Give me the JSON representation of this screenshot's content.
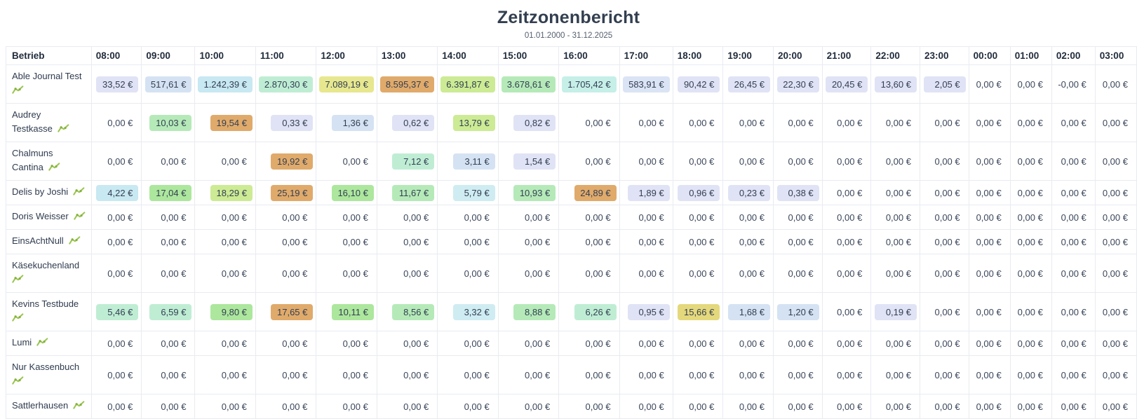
{
  "title": "Zeitzonenbericht",
  "subtitle": "01.01.2000 - 31.12.2025",
  "palette": {
    "lav": "#e0e3f5",
    "pblue": "#dbe4f5",
    "blue": "#d5e2f3",
    "cyan": "#c8e8f2",
    "pcyan": "#cfecf2",
    "turq": "#c6efe8",
    "mint": "#bfedd4",
    "mgreen": "#b5eab8",
    "green": "#ace79d",
    "ygreen": "#cceb94",
    "yellow": "#e7e78f",
    "gold": "#e4d87c",
    "orange": "#e0aa6b"
  },
  "table": {
    "first_col_header": "Betrieb",
    "hour_headers": [
      "08:00",
      "09:00",
      "10:00",
      "11:00",
      "12:00",
      "13:00",
      "14:00",
      "15:00",
      "16:00",
      "17:00",
      "18:00",
      "19:00",
      "20:00",
      "21:00",
      "22:00",
      "23:00",
      "00:00",
      "01:00",
      "02:00",
      "03:00"
    ],
    "row_icon": "line-chart-icon",
    "rows": [
      {
        "name": "Able Journal Test",
        "cells": [
          [
            "33,52 €",
            "lav"
          ],
          [
            "517,61 €",
            "blue"
          ],
          [
            "1.242,39 €",
            "cyan"
          ],
          [
            "2.870,30 €",
            "mint"
          ],
          [
            "7.089,19 €",
            "yellow"
          ],
          [
            "8.595,37 €",
            "orange"
          ],
          [
            "6.391,87 €",
            "ygreen"
          ],
          [
            "3.678,61 €",
            "mgreen"
          ],
          [
            "1.705,42 €",
            "turq"
          ],
          [
            "583,91 €",
            "pblue"
          ],
          [
            "90,42 €",
            "lav"
          ],
          [
            "26,45 €",
            "lav"
          ],
          [
            "22,30 €",
            "lav"
          ],
          [
            "20,45 €",
            "lav"
          ],
          [
            "13,60 €",
            "lav"
          ],
          [
            "2,05 €",
            "lav"
          ],
          [
            "0,00 €",
            null
          ],
          [
            "0,00 €",
            null
          ],
          [
            "-0,00 €",
            null
          ],
          [
            "0,00 €",
            null
          ]
        ]
      },
      {
        "name": "Audrey Testkasse",
        "cells": [
          [
            "0,00 €",
            null
          ],
          [
            "10,03 €",
            "mgreen"
          ],
          [
            "19,54 €",
            "orange"
          ],
          [
            "0,33 €",
            "lav"
          ],
          [
            "1,36 €",
            "blue"
          ],
          [
            "0,62 €",
            "lav"
          ],
          [
            "13,79 €",
            "ygreen"
          ],
          [
            "0,82 €",
            "lav"
          ],
          [
            "0,00 €",
            null
          ],
          [
            "0,00 €",
            null
          ],
          [
            "0,00 €",
            null
          ],
          [
            "0,00 €",
            null
          ],
          [
            "0,00 €",
            null
          ],
          [
            "0,00 €",
            null
          ],
          [
            "0,00 €",
            null
          ],
          [
            "0,00 €",
            null
          ],
          [
            "0,00 €",
            null
          ],
          [
            "0,00 €",
            null
          ],
          [
            "0,00 €",
            null
          ],
          [
            "0,00 €",
            null
          ]
        ]
      },
      {
        "name": "Chalmuns Cantina",
        "cells": [
          [
            "0,00 €",
            null
          ],
          [
            "0,00 €",
            null
          ],
          [
            "0,00 €",
            null
          ],
          [
            "19,92 €",
            "orange"
          ],
          [
            "0,00 €",
            null
          ],
          [
            "7,12 €",
            "mint"
          ],
          [
            "3,11 €",
            "blue"
          ],
          [
            "1,54 €",
            "lav"
          ],
          [
            "0,00 €",
            null
          ],
          [
            "0,00 €",
            null
          ],
          [
            "0,00 €",
            null
          ],
          [
            "0,00 €",
            null
          ],
          [
            "0,00 €",
            null
          ],
          [
            "0,00 €",
            null
          ],
          [
            "0,00 €",
            null
          ],
          [
            "0,00 €",
            null
          ],
          [
            "0,00 €",
            null
          ],
          [
            "0,00 €",
            null
          ],
          [
            "0,00 €",
            null
          ],
          [
            "0,00 €",
            null
          ]
        ]
      },
      {
        "name": "Delis by Joshi",
        "cells": [
          [
            "4,22 €",
            "cyan"
          ],
          [
            "17,04 €",
            "green"
          ],
          [
            "18,29 €",
            "ygreen"
          ],
          [
            "25,19 €",
            "orange"
          ],
          [
            "16,10 €",
            "green"
          ],
          [
            "11,67 €",
            "mgreen"
          ],
          [
            "5,79 €",
            "pcyan"
          ],
          [
            "10,93 €",
            "mgreen"
          ],
          [
            "24,89 €",
            "orange"
          ],
          [
            "1,89 €",
            "lav"
          ],
          [
            "0,96 €",
            "lav"
          ],
          [
            "0,23 €",
            "lav"
          ],
          [
            "0,38 €",
            "lav"
          ],
          [
            "0,00 €",
            null
          ],
          [
            "0,00 €",
            null
          ],
          [
            "0,00 €",
            null
          ],
          [
            "0,00 €",
            null
          ],
          [
            "0,00 €",
            null
          ],
          [
            "0,00 €",
            null
          ],
          [
            "0,00 €",
            null
          ]
        ]
      },
      {
        "name": "Doris Weisser",
        "cells": [
          [
            "0,00 €",
            null
          ],
          [
            "0,00 €",
            null
          ],
          [
            "0,00 €",
            null
          ],
          [
            "0,00 €",
            null
          ],
          [
            "0,00 €",
            null
          ],
          [
            "0,00 €",
            null
          ],
          [
            "0,00 €",
            null
          ],
          [
            "0,00 €",
            null
          ],
          [
            "0,00 €",
            null
          ],
          [
            "0,00 €",
            null
          ],
          [
            "0,00 €",
            null
          ],
          [
            "0,00 €",
            null
          ],
          [
            "0,00 €",
            null
          ],
          [
            "0,00 €",
            null
          ],
          [
            "0,00 €",
            null
          ],
          [
            "0,00 €",
            null
          ],
          [
            "0,00 €",
            null
          ],
          [
            "0,00 €",
            null
          ],
          [
            "0,00 €",
            null
          ],
          [
            "0,00 €",
            null
          ]
        ]
      },
      {
        "name": "EinsAchtNull",
        "cells": [
          [
            "0,00 €",
            null
          ],
          [
            "0,00 €",
            null
          ],
          [
            "0,00 €",
            null
          ],
          [
            "0,00 €",
            null
          ],
          [
            "0,00 €",
            null
          ],
          [
            "0,00 €",
            null
          ],
          [
            "0,00 €",
            null
          ],
          [
            "0,00 €",
            null
          ],
          [
            "0,00 €",
            null
          ],
          [
            "0,00 €",
            null
          ],
          [
            "0,00 €",
            null
          ],
          [
            "0,00 €",
            null
          ],
          [
            "0,00 €",
            null
          ],
          [
            "0,00 €",
            null
          ],
          [
            "0,00 €",
            null
          ],
          [
            "0,00 €",
            null
          ],
          [
            "0,00 €",
            null
          ],
          [
            "0,00 €",
            null
          ],
          [
            "0,00 €",
            null
          ],
          [
            "0,00 €",
            null
          ]
        ]
      },
      {
        "name": "Käsekuchenland",
        "cells": [
          [
            "0,00 €",
            null
          ],
          [
            "0,00 €",
            null
          ],
          [
            "0,00 €",
            null
          ],
          [
            "0,00 €",
            null
          ],
          [
            "0,00 €",
            null
          ],
          [
            "0,00 €",
            null
          ],
          [
            "0,00 €",
            null
          ],
          [
            "0,00 €",
            null
          ],
          [
            "0,00 €",
            null
          ],
          [
            "0,00 €",
            null
          ],
          [
            "0,00 €",
            null
          ],
          [
            "0,00 €",
            null
          ],
          [
            "0,00 €",
            null
          ],
          [
            "0,00 €",
            null
          ],
          [
            "0,00 €",
            null
          ],
          [
            "0,00 €",
            null
          ],
          [
            "0,00 €",
            null
          ],
          [
            "0,00 €",
            null
          ],
          [
            "0,00 €",
            null
          ],
          [
            "0,00 €",
            null
          ]
        ]
      },
      {
        "name": "Kevins Testbude",
        "cells": [
          [
            "5,46 €",
            "mint"
          ],
          [
            "6,59 €",
            "mint"
          ],
          [
            "9,80 €",
            "green"
          ],
          [
            "17,65 €",
            "orange"
          ],
          [
            "10,11 €",
            "green"
          ],
          [
            "8,56 €",
            "mgreen"
          ],
          [
            "3,32 €",
            "pcyan"
          ],
          [
            "8,88 €",
            "mgreen"
          ],
          [
            "6,26 €",
            "mint"
          ],
          [
            "0,95 €",
            "lav"
          ],
          [
            "15,66 €",
            "gold"
          ],
          [
            "1,68 €",
            "blue"
          ],
          [
            "1,20 €",
            "blue"
          ],
          [
            "0,00 €",
            null
          ],
          [
            "0,19 €",
            "lav"
          ],
          [
            "0,00 €",
            null
          ],
          [
            "0,00 €",
            null
          ],
          [
            "0,00 €",
            null
          ],
          [
            "0,00 €",
            null
          ],
          [
            "0,00 €",
            null
          ]
        ]
      },
      {
        "name": "Lumi",
        "cells": [
          [
            "0,00 €",
            null
          ],
          [
            "0,00 €",
            null
          ],
          [
            "0,00 €",
            null
          ],
          [
            "0,00 €",
            null
          ],
          [
            "0,00 €",
            null
          ],
          [
            "0,00 €",
            null
          ],
          [
            "0,00 €",
            null
          ],
          [
            "0,00 €",
            null
          ],
          [
            "0,00 €",
            null
          ],
          [
            "0,00 €",
            null
          ],
          [
            "0,00 €",
            null
          ],
          [
            "0,00 €",
            null
          ],
          [
            "0,00 €",
            null
          ],
          [
            "0,00 €",
            null
          ],
          [
            "0,00 €",
            null
          ],
          [
            "0,00 €",
            null
          ],
          [
            "0,00 €",
            null
          ],
          [
            "0,00 €",
            null
          ],
          [
            "0,00 €",
            null
          ],
          [
            "0,00 €",
            null
          ]
        ]
      },
      {
        "name": "Nur Kassenbuch",
        "cells": [
          [
            "0,00 €",
            null
          ],
          [
            "0,00 €",
            null
          ],
          [
            "0,00 €",
            null
          ],
          [
            "0,00 €",
            null
          ],
          [
            "0,00 €",
            null
          ],
          [
            "0,00 €",
            null
          ],
          [
            "0,00 €",
            null
          ],
          [
            "0,00 €",
            null
          ],
          [
            "0,00 €",
            null
          ],
          [
            "0,00 €",
            null
          ],
          [
            "0,00 €",
            null
          ],
          [
            "0,00 €",
            null
          ],
          [
            "0,00 €",
            null
          ],
          [
            "0,00 €",
            null
          ],
          [
            "0,00 €",
            null
          ],
          [
            "0,00 €",
            null
          ],
          [
            "0,00 €",
            null
          ],
          [
            "0,00 €",
            null
          ],
          [
            "0,00 €",
            null
          ],
          [
            "0,00 €",
            null
          ]
        ]
      },
      {
        "name": "Sattlerhausen",
        "cells": [
          [
            "0,00 €",
            null
          ],
          [
            "0,00 €",
            null
          ],
          [
            "0,00 €",
            null
          ],
          [
            "0,00 €",
            null
          ],
          [
            "0,00 €",
            null
          ],
          [
            "0,00 €",
            null
          ],
          [
            "0,00 €",
            null
          ],
          [
            "0,00 €",
            null
          ],
          [
            "0,00 €",
            null
          ],
          [
            "0,00 €",
            null
          ],
          [
            "0,00 €",
            null
          ],
          [
            "0,00 €",
            null
          ],
          [
            "0,00 €",
            null
          ],
          [
            "0,00 €",
            null
          ],
          [
            "0,00 €",
            null
          ],
          [
            "0,00 €",
            null
          ],
          [
            "0,00 €",
            null
          ],
          [
            "0,00 €",
            null
          ],
          [
            "0,00 €",
            null
          ],
          [
            "0,00 €",
            null
          ]
        ]
      }
    ]
  }
}
